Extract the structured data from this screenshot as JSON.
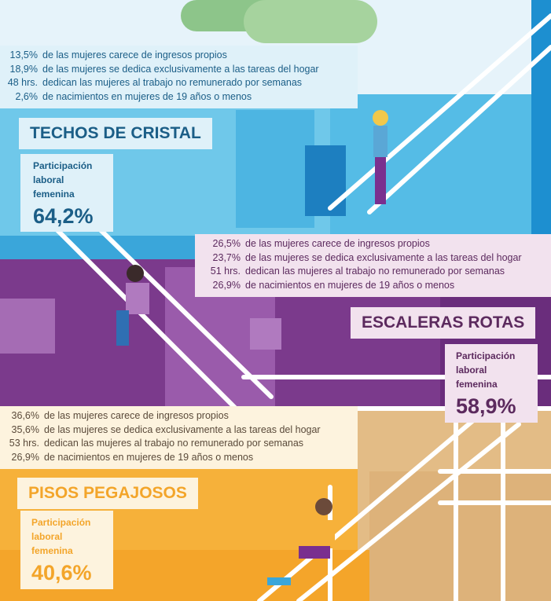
{
  "colors": {
    "techos_text": "#1b5e87",
    "techos_box": "#dff1f9",
    "escaleras_text": "#5c2a5e",
    "escaleras_box": "#f2e2ee",
    "pisos_text": "#f3a52a",
    "pisos_box": "#fdf3de"
  },
  "techos": {
    "stats": [
      {
        "value": "13,5%",
        "text": "de las mujeres carece de ingresos propios"
      },
      {
        "value": "18,9%",
        "text": "de las mujeres se dedica exclusivamente a las tareas del hogar"
      },
      {
        "value": "48 hrs.",
        "text": "dedican las mujeres al trabajo no remunerado por semanas"
      },
      {
        "value": "2,6%",
        "text": "de nacimientos en mujeres de 19 años o menos"
      }
    ],
    "title": "TECHOS DE CRISTAL",
    "participation_label_1": "Participación",
    "participation_label_2": "laboral",
    "participation_label_3": "femenina",
    "participation_value": "64,2%"
  },
  "escaleras": {
    "stats": [
      {
        "value": "26,5%",
        "text": "de las mujeres carece de ingresos propios"
      },
      {
        "value": "23,7%",
        "text": "de las mujeres se dedica exclusivamente a las tareas del hogar"
      },
      {
        "value": "51 hrs.",
        "text": "dedican las mujeres al trabajo no remunerado por semanas"
      },
      {
        "value": "26,9%",
        "text": "de nacimientos en mujeres de 19 años o menos"
      }
    ],
    "title": "ESCALERAS ROTAS",
    "participation_label_1": "Participación",
    "participation_label_2": "laboral",
    "participation_label_3": "femenina",
    "participation_value": "58,9%"
  },
  "pisos": {
    "stats": [
      {
        "value": "36,6%",
        "text": "de las mujeres carece de ingresos propios"
      },
      {
        "value": "35,6%",
        "text": "de las mujeres se dedica exclusivamente a las tareas del hogar"
      },
      {
        "value": "53 hrs.",
        "text": "dedican las mujeres al trabajo no remunerado por semanas"
      },
      {
        "value": "26,9%",
        "text": "de nacimientos en mujeres de 19 años o menos"
      }
    ],
    "title": "PISOS PEGAJOSOS",
    "participation_label_1": "Participación",
    "participation_label_2": "laboral",
    "participation_label_3": "femenina",
    "participation_value": "40,6%"
  }
}
